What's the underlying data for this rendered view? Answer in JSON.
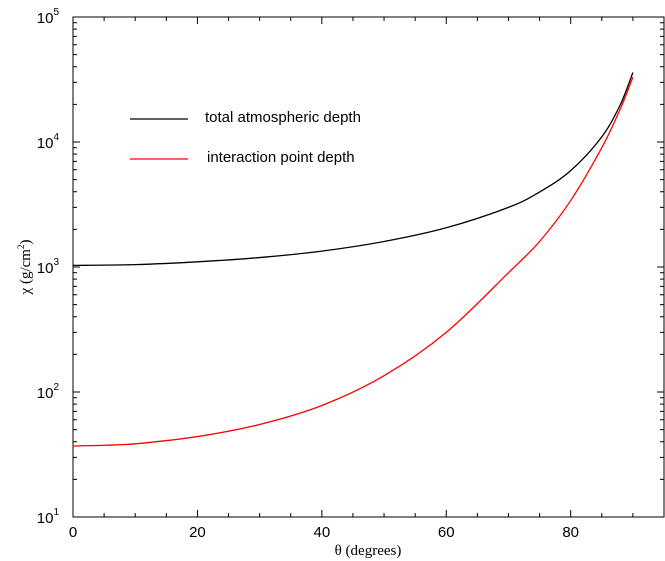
{
  "chart_data": {
    "type": "line",
    "title": "",
    "xlabel": "θ (degrees)",
    "ylabel_main": "χ (g/cm",
    "ylabel_exp": "2",
    "ylabel_close": ")",
    "xlim": [
      0,
      95
    ],
    "ylim": [
      10,
      100000
    ],
    "yscale": "log",
    "grid": false,
    "legend_position": "top-left",
    "x_ticks": [
      0,
      20,
      40,
      60,
      80
    ],
    "x_tick_labels": [
      "0",
      "20",
      "40",
      "60",
      "80"
    ],
    "y_ticks": [
      {
        "value": 10,
        "base": "10",
        "exp": "1"
      },
      {
        "value": 100,
        "base": "10",
        "exp": "2"
      },
      {
        "value": 1000,
        "base": "10",
        "exp": "3"
      },
      {
        "value": 10000,
        "base": "10",
        "exp": "4"
      },
      {
        "value": 100000,
        "base": "10",
        "exp": "5"
      }
    ],
    "series": [
      {
        "name": "total atmospheric depth",
        "color": "#000000",
        "x": [
          0,
          10,
          20,
          30,
          40,
          50,
          60,
          70,
          75,
          80,
          85,
          88,
          90
        ],
        "y": [
          1030,
          1045,
          1100,
          1190,
          1340,
          1600,
          2060,
          3000,
          3980,
          5900,
          11000,
          20000,
          36000
        ]
      },
      {
        "name": "interaction point depth",
        "color": "#ff0000",
        "x": [
          0,
          5,
          10,
          20,
          30,
          40,
          50,
          60,
          70,
          75,
          80,
          85,
          88,
          90
        ],
        "y": [
          37,
          37.5,
          38.5,
          44,
          55,
          78,
          135,
          300,
          900,
          1600,
          3400,
          9000,
          18500,
          33000
        ]
      }
    ]
  }
}
